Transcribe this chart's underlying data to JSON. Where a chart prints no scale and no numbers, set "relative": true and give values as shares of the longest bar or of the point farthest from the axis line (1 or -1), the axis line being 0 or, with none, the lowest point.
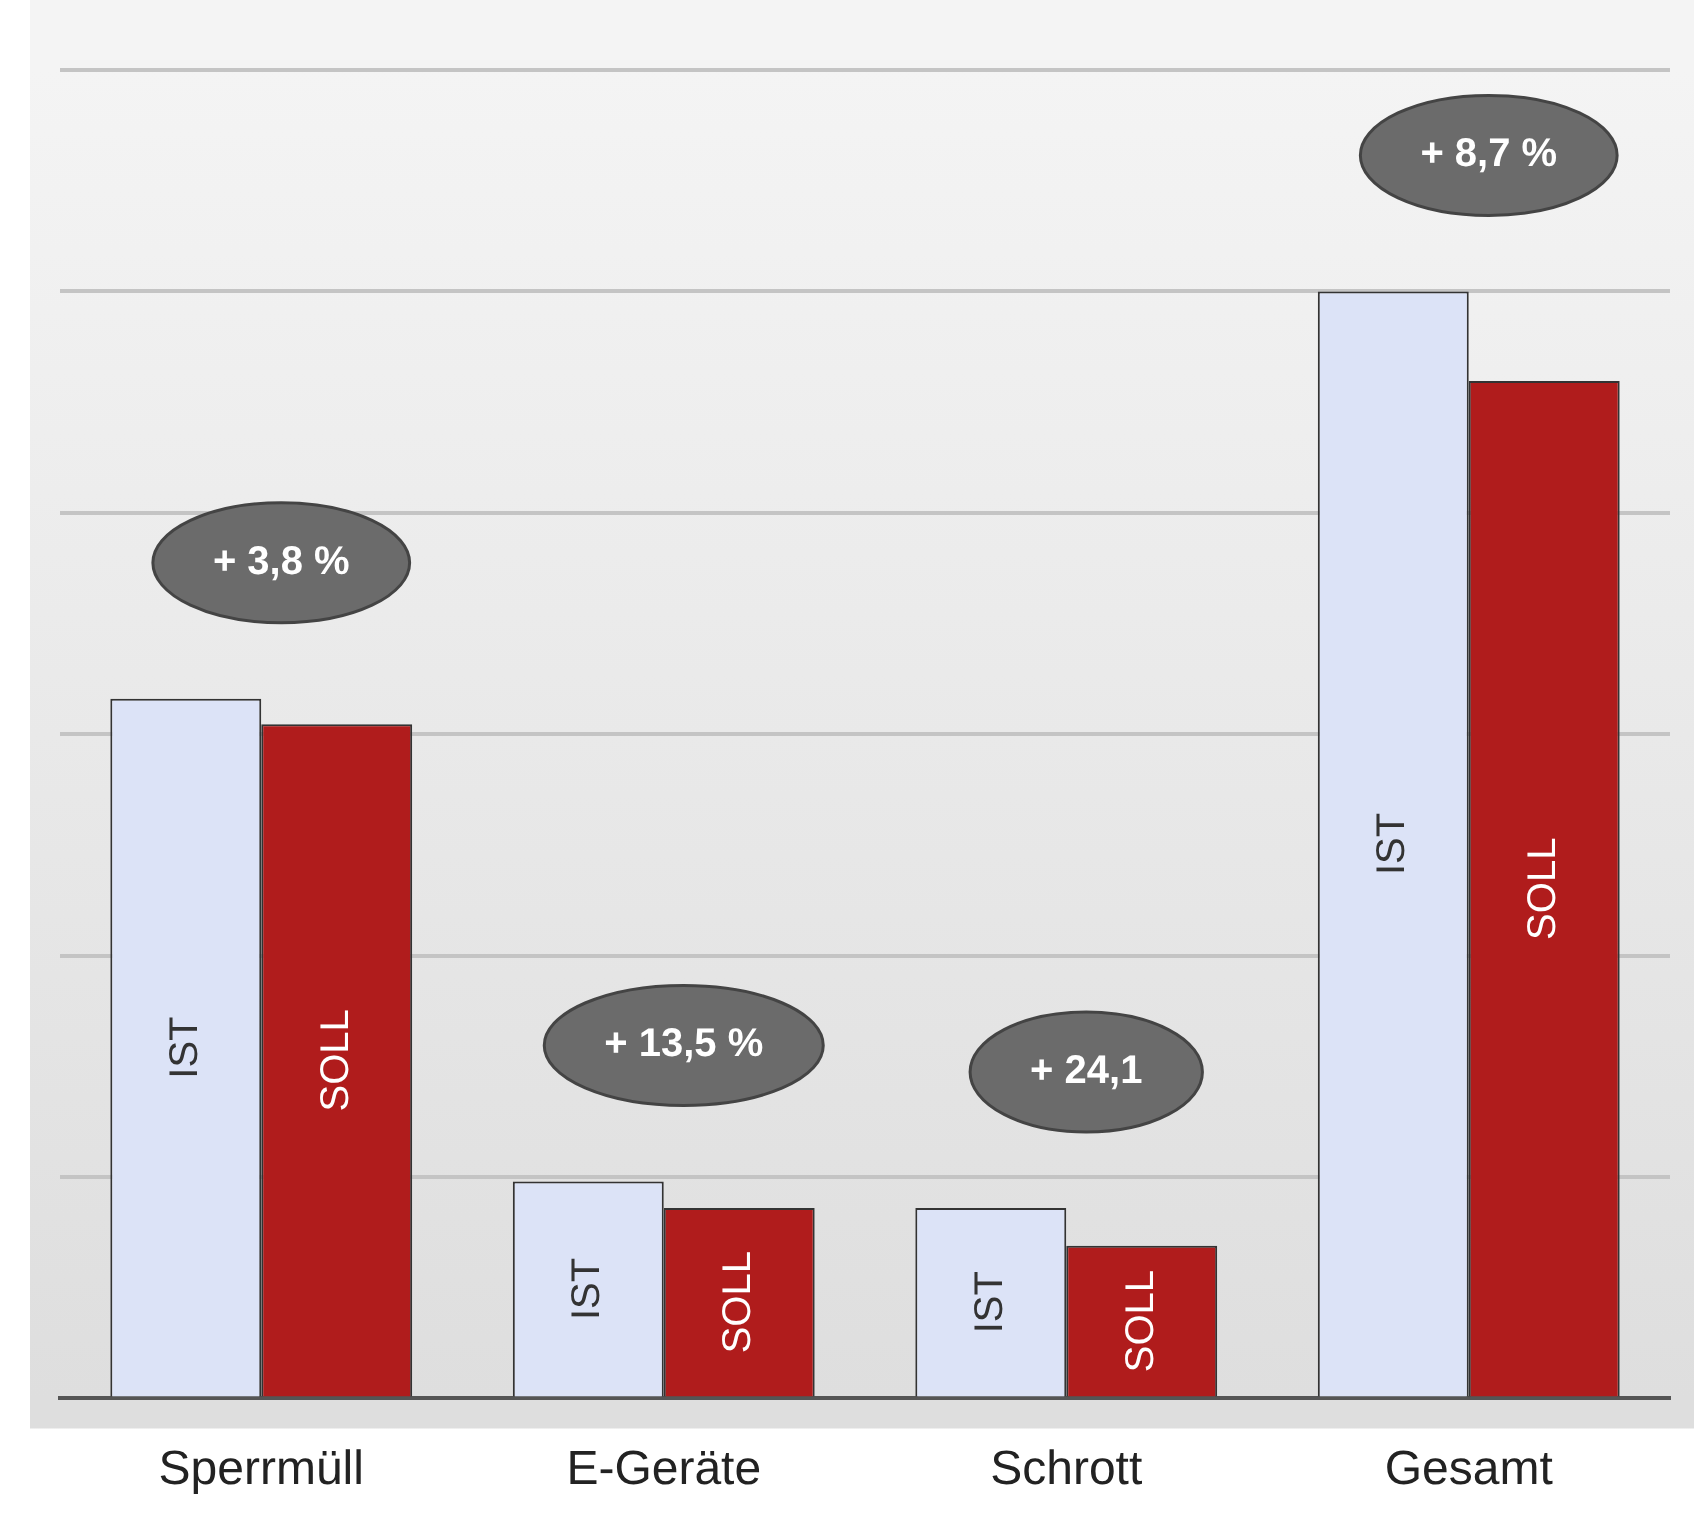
{
  "chart_data": {
    "type": "bar",
    "relative": true,
    "grid": "y",
    "categories": [
      "Sperrmüll",
      "E-Geräte",
      "Schrott",
      "Gesamt"
    ],
    "series": [
      {
        "name": "IST",
        "color": "#dce3f7",
        "values": [
          0.632,
          0.196,
          0.172,
          1
        ]
      },
      {
        "name": "SOLL",
        "color": "#b01c1c",
        "values": [
          0.609,
          0.172,
          0.138,
          0.919
        ]
      }
    ],
    "annotations": [
      "+ 3,8 %",
      "+ 13,5 %",
      "+ 24,1",
      "+ 8,7 %"
    ]
  }
}
